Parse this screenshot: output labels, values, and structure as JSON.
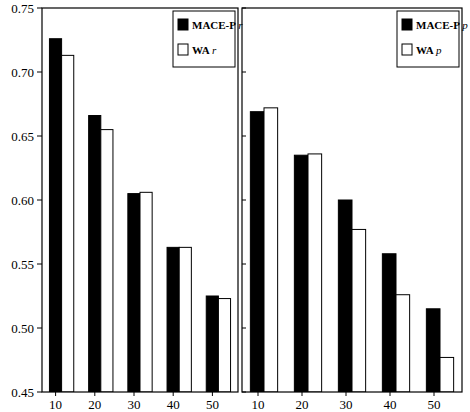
{
  "chart_data": [
    {
      "type": "bar",
      "categories": [
        "10",
        "20",
        "30",
        "40",
        "50"
      ],
      "series": [
        {
          "name": "MACE-P r",
          "color": "#000000",
          "values": [
            0.726,
            0.666,
            0.605,
            0.563,
            0.525
          ]
        },
        {
          "name": "WA r",
          "color": "#ffffff",
          "values": [
            0.713,
            0.655,
            0.606,
            0.563,
            0.523
          ]
        }
      ],
      "ylim": [
        0.45,
        0.75
      ],
      "yticks": [
        0.45,
        {
          "value": 0.5,
          "label": "0.50"
        },
        0.55,
        {
          "value": 0.6,
          "label": "0.60"
        },
        0.65,
        {
          "value": 0.7,
          "label": "0.70"
        },
        0.75
      ],
      "legend": "top-right",
      "grid": false
    },
    {
      "type": "bar",
      "categories": [
        "10",
        "20",
        "30",
        "40",
        "50"
      ],
      "series": [
        {
          "name": "MACE-P p",
          "color": "#000000",
          "values": [
            0.669,
            0.635,
            0.6,
            0.558,
            0.515
          ]
        },
        {
          "name": "WA p",
          "color": "#ffffff",
          "values": [
            0.672,
            0.636,
            0.577,
            0.526,
            0.477
          ]
        }
      ],
      "ylim": [
        0.45,
        0.75
      ],
      "yticks": [
        0.45,
        0.5,
        0.55,
        0.6,
        0.65,
        0.7,
        0.75
      ],
      "legend": "top-right",
      "tick_labels": "x",
      "grid": false
    }
  ]
}
